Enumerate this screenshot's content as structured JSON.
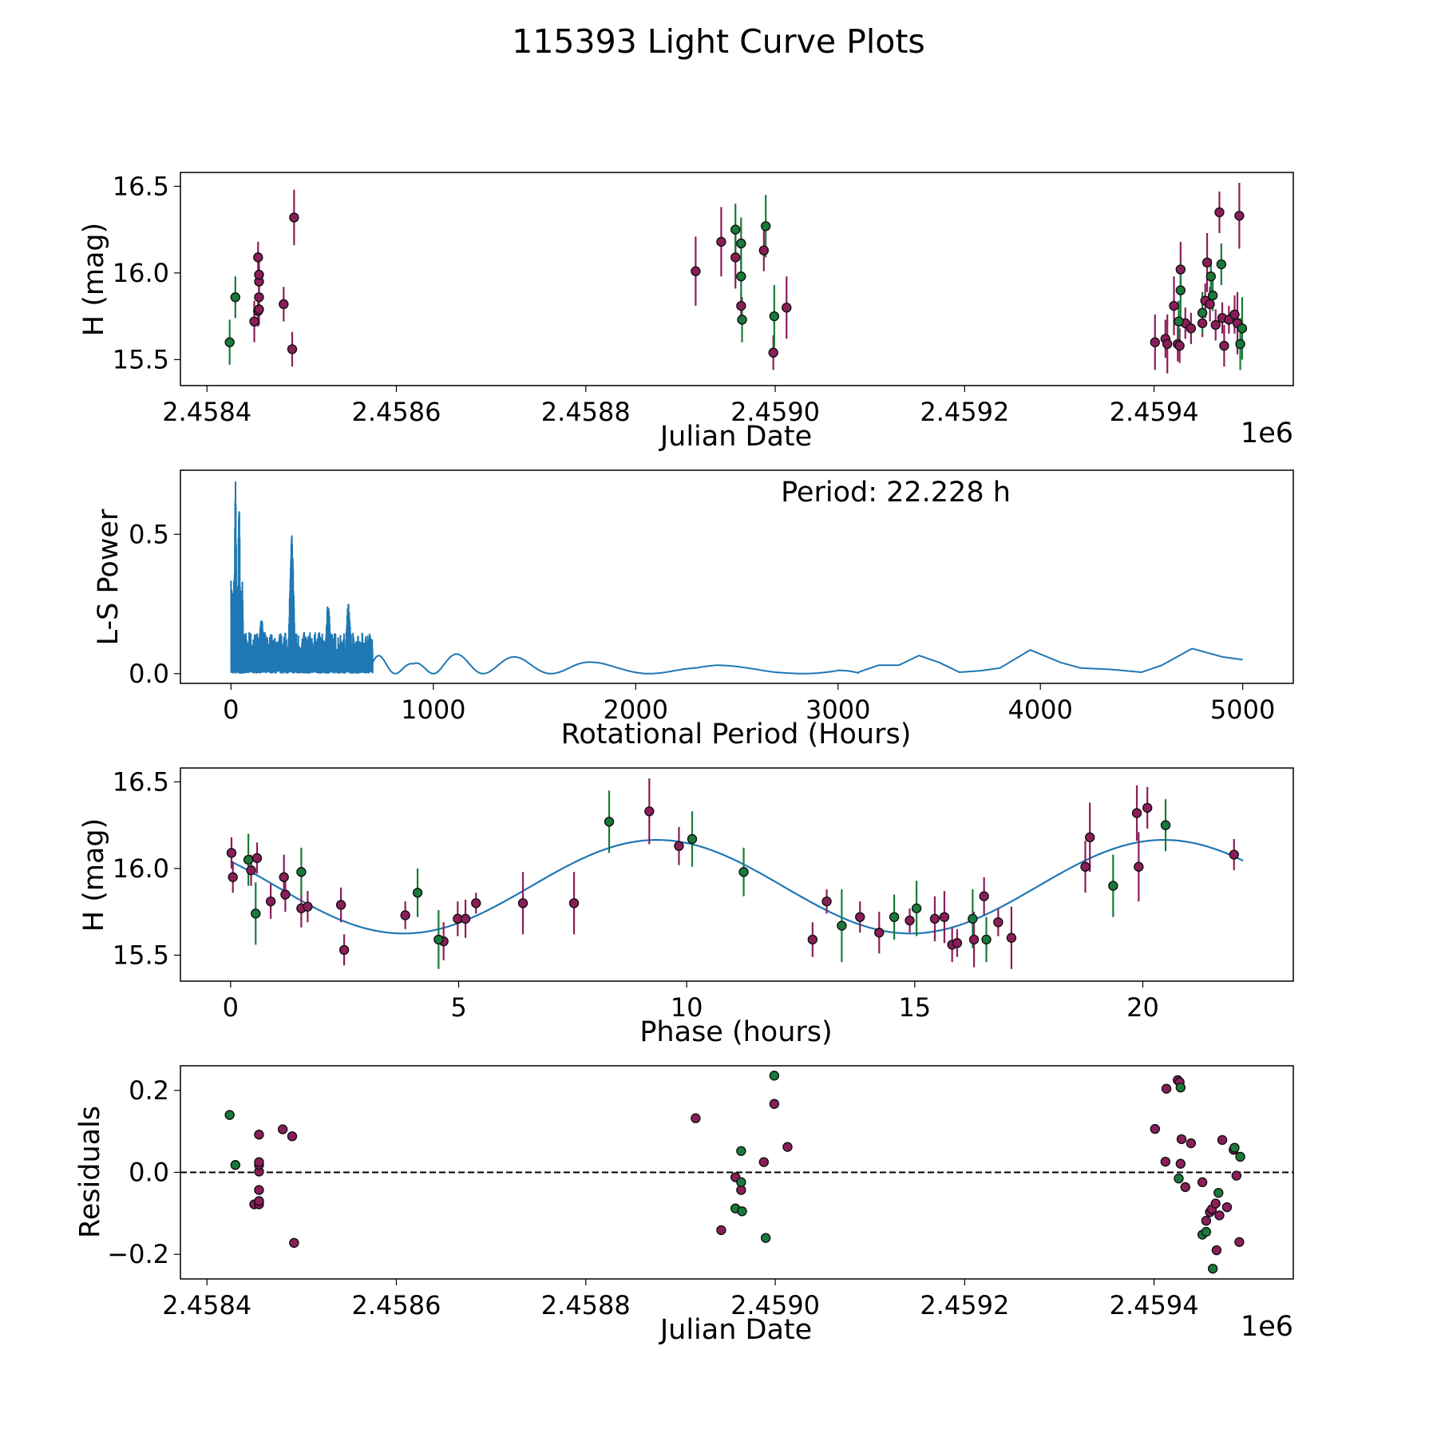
{
  "figure_title": "115393 Light Curve Plots",
  "colors": {
    "band_a": "#8b1e5a",
    "band_b": "#1a7a3a",
    "model": "#1f77b4",
    "zero_line": "#000000"
  },
  "chart_data": [
    {
      "id": "lightcurve",
      "type": "scatter",
      "title": "",
      "xlabel": "Julian Date",
      "ylabel": "H (mag)",
      "x_offset_label": "1e6",
      "xlim": [
        2458372,
        2459547
      ],
      "ylim": [
        15.35,
        16.58
      ],
      "xticks": [
        2458400,
        2458600,
        2458800,
        2459000,
        2459200,
        2459400
      ],
      "xtick_labels": [
        "2.4584",
        "2.4586",
        "2.4588",
        "2.4590",
        "2.4592",
        "2.4594"
      ],
      "yticks": [
        15.5,
        16.0,
        16.5
      ],
      "ytick_labels": [
        "15.5",
        "16.0",
        "16.5"
      ],
      "series": [
        {
          "name": "band_a",
          "color": "#8b1e5a",
          "points": [
            [
              2458450,
              15.72,
              0.12
            ],
            [
              2458454,
              15.78,
              0.09
            ],
            [
              2458455,
              15.86,
              0.08
            ],
            [
              2458455,
              15.95,
              0.09
            ],
            [
              2458455,
              15.99,
              0.09
            ],
            [
              2458454,
              16.09,
              0.09
            ],
            [
              2458455,
              15.79,
              0.09
            ],
            [
              2458481,
              15.82,
              0.1
            ],
            [
              2458490,
              15.56,
              0.1
            ],
            [
              2458492,
              16.32,
              0.16
            ],
            [
              2458916,
              16.01,
              0.2
            ],
            [
              2458943,
              16.18,
              0.2
            ],
            [
              2458958,
              16.09,
              0.18
            ],
            [
              2458964,
              15.81,
              0.06
            ],
            [
              2458988,
              16.13,
              0.12
            ],
            [
              2458998,
              15.54,
              0.1
            ],
            [
              2459012,
              15.8,
              0.18
            ],
            [
              2459401,
              15.6,
              0.16
            ],
            [
              2459412,
              15.62,
              0.11
            ],
            [
              2459414,
              15.59,
              0.17
            ],
            [
              2459421,
              15.81,
              0.17
            ],
            [
              2459425,
              15.59,
              0.1
            ],
            [
              2459427,
              15.58,
              0.1
            ],
            [
              2459428,
              16.02,
              0.16
            ],
            [
              2459433,
              15.71,
              0.09
            ],
            [
              2459439,
              15.68,
              0.09
            ],
            [
              2459451,
              15.71,
              0.08
            ],
            [
              2459454,
              15.84,
              0.1
            ],
            [
              2459456,
              16.06,
              0.17
            ],
            [
              2459459,
              15.82,
              0.1
            ],
            [
              2459465,
              15.7,
              0.09
            ],
            [
              2459469,
              16.35,
              0.12
            ],
            [
              2459472,
              15.74,
              0.09
            ],
            [
              2459474,
              15.58,
              0.12
            ],
            [
              2459479,
              15.73,
              0.08
            ],
            [
              2459485,
              15.76,
              0.11
            ],
            [
              2459488,
              15.71,
              0.18
            ],
            [
              2459490,
              16.33,
              0.19
            ]
          ]
        },
        {
          "name": "band_b",
          "color": "#1a7a3a",
          "points": [
            [
              2458424,
              15.6,
              0.13
            ],
            [
              2458430,
              15.86,
              0.12
            ],
            [
              2458958,
              16.25,
              0.15
            ],
            [
              2458964,
              16.17,
              0.15
            ],
            [
              2458964,
              15.98,
              0.12
            ],
            [
              2458965,
              15.73,
              0.13
            ],
            [
              2458990,
              16.27,
              0.18
            ],
            [
              2458999,
              15.75,
              0.18
            ],
            [
              2459428,
              15.9,
              0.16
            ],
            [
              2459426,
              15.72,
              0.12
            ],
            [
              2459451,
              15.77,
              0.12
            ],
            [
              2459460,
              15.98,
              0.1
            ],
            [
              2459462,
              15.87,
              0.09
            ],
            [
              2459471,
              16.05,
              0.12
            ],
            [
              2459491,
              15.59,
              0.15
            ],
            [
              2459493,
              15.68,
              0.18
            ]
          ]
        }
      ]
    },
    {
      "id": "periodogram",
      "type": "line",
      "title": "",
      "annotation": "Period: 22.228 h",
      "xlabel": "Rotational Period (Hours)",
      "ylabel": "L-S Power",
      "xlim": [
        -250,
        5250
      ],
      "ylim": [
        -0.035,
        0.73
      ],
      "xticks": [
        0,
        1000,
        2000,
        3000,
        4000,
        5000
      ],
      "xtick_labels": [
        "0",
        "1000",
        "2000",
        "3000",
        "4000",
        "5000"
      ],
      "yticks": [
        0.0,
        0.5
      ],
      "ytick_labels": [
        "0.0",
        "0.5"
      ],
      "peaks": [
        [
          22.2,
          0.7
        ],
        [
          40,
          0.66
        ],
        [
          300,
          0.5
        ],
        [
          150,
          0.21
        ],
        [
          480,
          0.26
        ],
        [
          580,
          0.26
        ]
      ],
      "envelope": [
        [
          700,
          0.07
        ],
        [
          900,
          0.035
        ],
        [
          1000,
          0.07
        ],
        [
          1100,
          0.07
        ],
        [
          1200,
          0.07
        ],
        [
          1300,
          0.06
        ],
        [
          1450,
          0.06
        ],
        [
          1600,
          0.055
        ],
        [
          1700,
          0.05
        ],
        [
          1800,
          0.04
        ],
        [
          1900,
          0.035
        ],
        [
          2000,
          0.035
        ],
        [
          2100,
          0.03
        ],
        [
          2200,
          0.03
        ],
        [
          2300,
          0.025
        ],
        [
          2400,
          0.03
        ],
        [
          2500,
          0.03
        ],
        [
          2600,
          0.03
        ],
        [
          2700,
          0.025
        ],
        [
          2800,
          0.04
        ],
        [
          2900,
          0.04
        ],
        [
          3000,
          0.045
        ],
        [
          3100,
          0.005
        ],
        [
          3200,
          0.03
        ],
        [
          3300,
          0.03
        ],
        [
          3400,
          0.065
        ],
        [
          3500,
          0.04
        ],
        [
          3600,
          0.005
        ],
        [
          3700,
          0.01
        ],
        [
          3800,
          0.02
        ],
        [
          3950,
          0.085
        ],
        [
          4100,
          0.04
        ],
        [
          4200,
          0.02
        ],
        [
          4350,
          0.015
        ],
        [
          4500,
          0.005
        ],
        [
          4600,
          0.03
        ],
        [
          4750,
          0.09
        ],
        [
          4900,
          0.06
        ],
        [
          5000,
          0.05
        ]
      ]
    },
    {
      "id": "phased",
      "type": "scatter",
      "title": "",
      "xlabel": "Phase (hours)",
      "ylabel": "H (mag)",
      "xlim": [
        -1.1,
        23.3
      ],
      "ylim": [
        15.35,
        16.58
      ],
      "xticks": [
        0,
        5,
        10,
        15,
        20
      ],
      "xtick_labels": [
        "0",
        "5",
        "10",
        "15",
        "20"
      ],
      "yticks": [
        15.5,
        16.0,
        16.5
      ],
      "ytick_labels": [
        "15.5",
        "16.0",
        "16.5"
      ],
      "model": {
        "mean": 15.895,
        "amplitude": 0.27,
        "period": 11.114,
        "peak_phase": 9.35,
        "range": [
          0,
          22.228
        ]
      },
      "series": [
        {
          "name": "band_a",
          "color": "#8b1e5a",
          "points": [
            [
              0.02,
              16.09,
              0.09
            ],
            [
              0.05,
              15.95,
              0.09
            ],
            [
              0.45,
              15.99,
              0.09
            ],
            [
              0.58,
              16.06,
              0.09
            ],
            [
              0.88,
              15.81,
              0.1
            ],
            [
              1.17,
              15.95,
              0.13
            ],
            [
              1.2,
              15.85,
              0.1
            ],
            [
              1.55,
              15.77,
              0.11
            ],
            [
              1.69,
              15.78,
              0.09
            ],
            [
              2.42,
              15.79,
              0.1
            ],
            [
              2.49,
              15.53,
              0.09
            ],
            [
              3.83,
              15.73,
              0.08
            ],
            [
              4.67,
              15.58,
              0.11
            ],
            [
              4.98,
              15.71,
              0.1
            ],
            [
              5.15,
              15.71,
              0.11
            ],
            [
              5.38,
              15.8,
              0.06
            ],
            [
              6.41,
              15.8,
              0.18
            ],
            [
              7.53,
              15.8,
              0.18
            ],
            [
              9.18,
              16.33,
              0.19
            ],
            [
              9.83,
              16.13,
              0.11
            ],
            [
              12.76,
              15.59,
              0.1
            ],
            [
              13.07,
              15.81,
              0.07
            ],
            [
              13.8,
              15.72,
              0.09
            ],
            [
              14.22,
              15.63,
              0.12
            ],
            [
              14.89,
              15.7,
              0.07
            ],
            [
              15.44,
              15.71,
              0.13
            ],
            [
              15.65,
              15.72,
              0.15
            ],
            [
              15.82,
              15.56,
              0.1
            ],
            [
              15.93,
              15.57,
              0.08
            ],
            [
              16.3,
              15.59,
              0.16
            ],
            [
              16.52,
              15.84,
              0.11
            ],
            [
              16.83,
              15.69,
              0.08
            ],
            [
              17.12,
              15.6,
              0.18
            ],
            [
              18.74,
              16.01,
              0.15
            ],
            [
              18.84,
              16.18,
              0.2
            ],
            [
              19.87,
              16.32,
              0.16
            ],
            [
              19.91,
              16.01,
              0.2
            ],
            [
              20.1,
              16.35,
              0.12
            ],
            [
              22.0,
              16.08,
              0.09
            ]
          ]
        },
        {
          "name": "band_b",
          "color": "#1a7a3a",
          "points": [
            [
              0.39,
              16.05,
              0.15
            ],
            [
              0.55,
              15.74,
              0.18
            ],
            [
              1.55,
              15.98,
              0.14
            ],
            [
              4.1,
              15.86,
              0.14
            ],
            [
              4.56,
              15.59,
              0.17
            ],
            [
              8.3,
              16.27,
              0.18
            ],
            [
              10.12,
              16.17,
              0.16
            ],
            [
              11.25,
              15.98,
              0.14
            ],
            [
              13.4,
              15.67,
              0.21
            ],
            [
              14.55,
              15.72,
              0.13
            ],
            [
              15.04,
              15.77,
              0.16
            ],
            [
              16.27,
              15.71,
              0.17
            ],
            [
              16.57,
              15.59,
              0.13
            ],
            [
              19.35,
              15.9,
              0.18
            ],
            [
              20.5,
              16.25,
              0.15
            ]
          ]
        }
      ]
    },
    {
      "id": "residuals",
      "type": "scatter",
      "title": "",
      "xlabel": "Julian Date",
      "ylabel": "Residuals",
      "x_offset_label": "1e6",
      "xlim": [
        2458372,
        2459547
      ],
      "ylim": [
        -0.26,
        0.26
      ],
      "xticks": [
        2458400,
        2458600,
        2458800,
        2459000,
        2459200,
        2459400
      ],
      "xtick_labels": [
        "2.4584",
        "2.4586",
        "2.4588",
        "2.4590",
        "2.4592",
        "2.4594"
      ],
      "yticks": [
        -0.2,
        0.0,
        0.2
      ],
      "ytick_labels": [
        "−0.2",
        "0.0",
        "0.2"
      ],
      "zero_line": 0.0,
      "series": [
        {
          "name": "band_a",
          "color": "#8b1e5a",
          "points": [
            [
              2458450,
              -0.078
            ],
            [
              2458455,
              -0.078
            ],
            [
              2458455,
              -0.07
            ],
            [
              2458455,
              -0.043
            ],
            [
              2458455,
              0.002
            ],
            [
              2458455,
              0.018
            ],
            [
              2458455,
              0.025
            ],
            [
              2458455,
              0.092
            ],
            [
              2458480,
              0.105
            ],
            [
              2458490,
              0.088
            ],
            [
              2458492,
              -0.172
            ],
            [
              2458916,
              0.132
            ],
            [
              2458943,
              -0.141
            ],
            [
              2458958,
              -0.012
            ],
            [
              2458964,
              -0.043
            ],
            [
              2458988,
              0.025
            ],
            [
              2458999,
              0.167
            ],
            [
              2459013,
              0.062
            ],
            [
              2459401,
              0.106
            ],
            [
              2459412,
              0.026
            ],
            [
              2459413,
              0.204
            ],
            [
              2459425,
              0.225
            ],
            [
              2459427,
              0.22
            ],
            [
              2459428,
              0.021
            ],
            [
              2459429,
              0.081
            ],
            [
              2459433,
              -0.036
            ],
            [
              2459439,
              0.071
            ],
            [
              2459451,
              -0.024
            ],
            [
              2459455,
              -0.118
            ],
            [
              2459459,
              -0.097
            ],
            [
              2459461,
              -0.09
            ],
            [
              2459465,
              -0.076
            ],
            [
              2459466,
              -0.19
            ],
            [
              2459469,
              -0.105
            ],
            [
              2459472,
              0.079
            ],
            [
              2459477,
              -0.085
            ],
            [
              2459484,
              0.055
            ],
            [
              2459487,
              -0.008
            ],
            [
              2459490,
              -0.17
            ]
          ]
        },
        {
          "name": "band_b",
          "color": "#1a7a3a",
          "points": [
            [
              2458424,
              0.14
            ],
            [
              2458430,
              0.018
            ],
            [
              2458958,
              -0.088
            ],
            [
              2458964,
              0.052
            ],
            [
              2458964,
              -0.024
            ],
            [
              2458965,
              -0.095
            ],
            [
              2458990,
              -0.16
            ],
            [
              2458999,
              0.236
            ],
            [
              2459426,
              -0.015
            ],
            [
              2459428,
              0.207
            ],
            [
              2459451,
              -0.152
            ],
            [
              2459455,
              -0.145
            ],
            [
              2459462,
              -0.235
            ],
            [
              2459468,
              -0.05
            ],
            [
              2459485,
              0.06
            ],
            [
              2459491,
              0.038
            ]
          ]
        }
      ]
    }
  ]
}
